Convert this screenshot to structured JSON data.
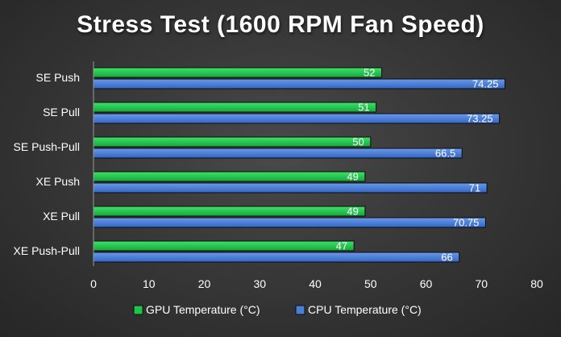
{
  "chart_data": {
    "type": "bar",
    "orientation": "horizontal",
    "title": "Stress Test (1600 RPM Fan Speed)",
    "categories": [
      "SE Push",
      "SE Pull",
      "SE Push-Pull",
      "XE Push",
      "XE Pull",
      "XE Push-Pull"
    ],
    "series": [
      {
        "name": "GPU Temperature (°C)",
        "color": "#1fc24a",
        "values": [
          52,
          51,
          50,
          49,
          49,
          47
        ]
      },
      {
        "name": "CPU Temperature (°C)",
        "color": "#4a7fd6",
        "values": [
          74.25,
          73.25,
          66.5,
          71,
          70.75,
          66
        ]
      }
    ],
    "value_labels": [
      [
        "52",
        "51",
        "50",
        "49",
        "49",
        "47"
      ],
      [
        "74.25",
        "73.25",
        "66.5",
        "71",
        "70.75",
        "66"
      ]
    ],
    "xlim": [
      0,
      80
    ],
    "xticks": [
      "0",
      "10",
      "20",
      "30",
      "40",
      "50",
      "60",
      "70",
      "80"
    ],
    "xlabel": "",
    "ylabel": "",
    "grid": false,
    "legend_position": "bottom"
  }
}
